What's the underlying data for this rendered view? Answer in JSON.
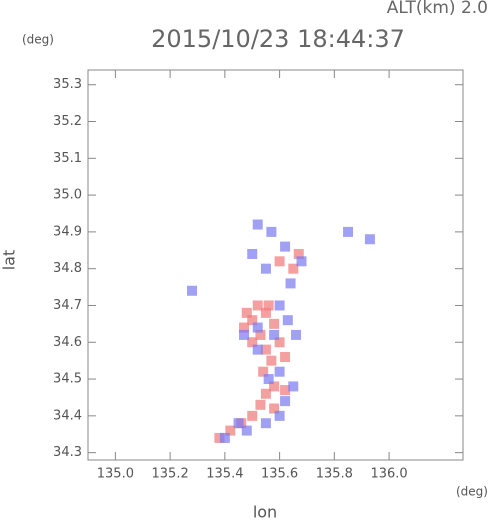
{
  "chart_data": {
    "type": "scatter",
    "title": "2015/10/23 18:44:37",
    "subtitle": "ALT(km) 2.0",
    "x_label": "lon",
    "x_unit": "(deg)",
    "y_label": "lat",
    "y_unit": "(deg)",
    "xlim": [
      134.9,
      136.27
    ],
    "ylim": [
      34.28,
      35.34
    ],
    "xticks": [
      {
        "value": 135.0,
        "label": "135.0"
      },
      135.2,
      135.4,
      135.6,
      135.8,
      {
        "value": 136.0,
        "label": "136.0"
      }
    ],
    "yticks": [
      35.3,
      35.2,
      35.1,
      {
        "value": 35.0,
        "label": "35.0"
      },
      34.9,
      34.8,
      34.7,
      34.6,
      34.5,
      34.4,
      34.3
    ],
    "grid": false,
    "series": [
      {
        "color": "#f07878",
        "x": [
          135.52,
          135.55,
          135.5,
          135.47,
          135.58,
          135.53,
          135.6,
          135.55,
          135.5,
          135.57,
          135.62,
          135.54,
          135.58,
          135.55,
          135.62,
          135.53,
          135.58,
          135.5,
          135.46,
          135.42,
          135.38,
          135.6,
          135.65,
          135.67,
          135.56,
          135.48
        ],
        "y": [
          34.7,
          34.68,
          34.66,
          34.64,
          34.65,
          34.62,
          34.6,
          34.58,
          34.6,
          34.55,
          34.56,
          34.52,
          34.48,
          34.46,
          34.47,
          34.43,
          34.42,
          34.4,
          34.38,
          34.36,
          34.34,
          34.82,
          34.8,
          34.84,
          34.7,
          34.68
        ]
      },
      {
        "color": "#7878f0",
        "x": [
          135.52,
          135.57,
          135.5,
          135.55,
          135.62,
          135.68,
          135.64,
          135.85,
          135.93,
          135.6,
          135.63,
          135.58,
          135.52,
          135.6,
          135.65,
          135.62,
          135.6,
          135.55,
          135.48,
          135.45,
          135.4,
          135.47,
          135.52,
          135.66,
          135.56,
          135.28
        ],
        "y": [
          34.92,
          34.9,
          34.84,
          34.8,
          34.86,
          34.82,
          34.76,
          34.9,
          34.88,
          34.7,
          34.66,
          34.62,
          34.58,
          34.52,
          34.48,
          34.44,
          34.4,
          34.38,
          34.36,
          34.38,
          34.34,
          34.62,
          34.64,
          34.62,
          34.5,
          34.74
        ]
      }
    ]
  }
}
